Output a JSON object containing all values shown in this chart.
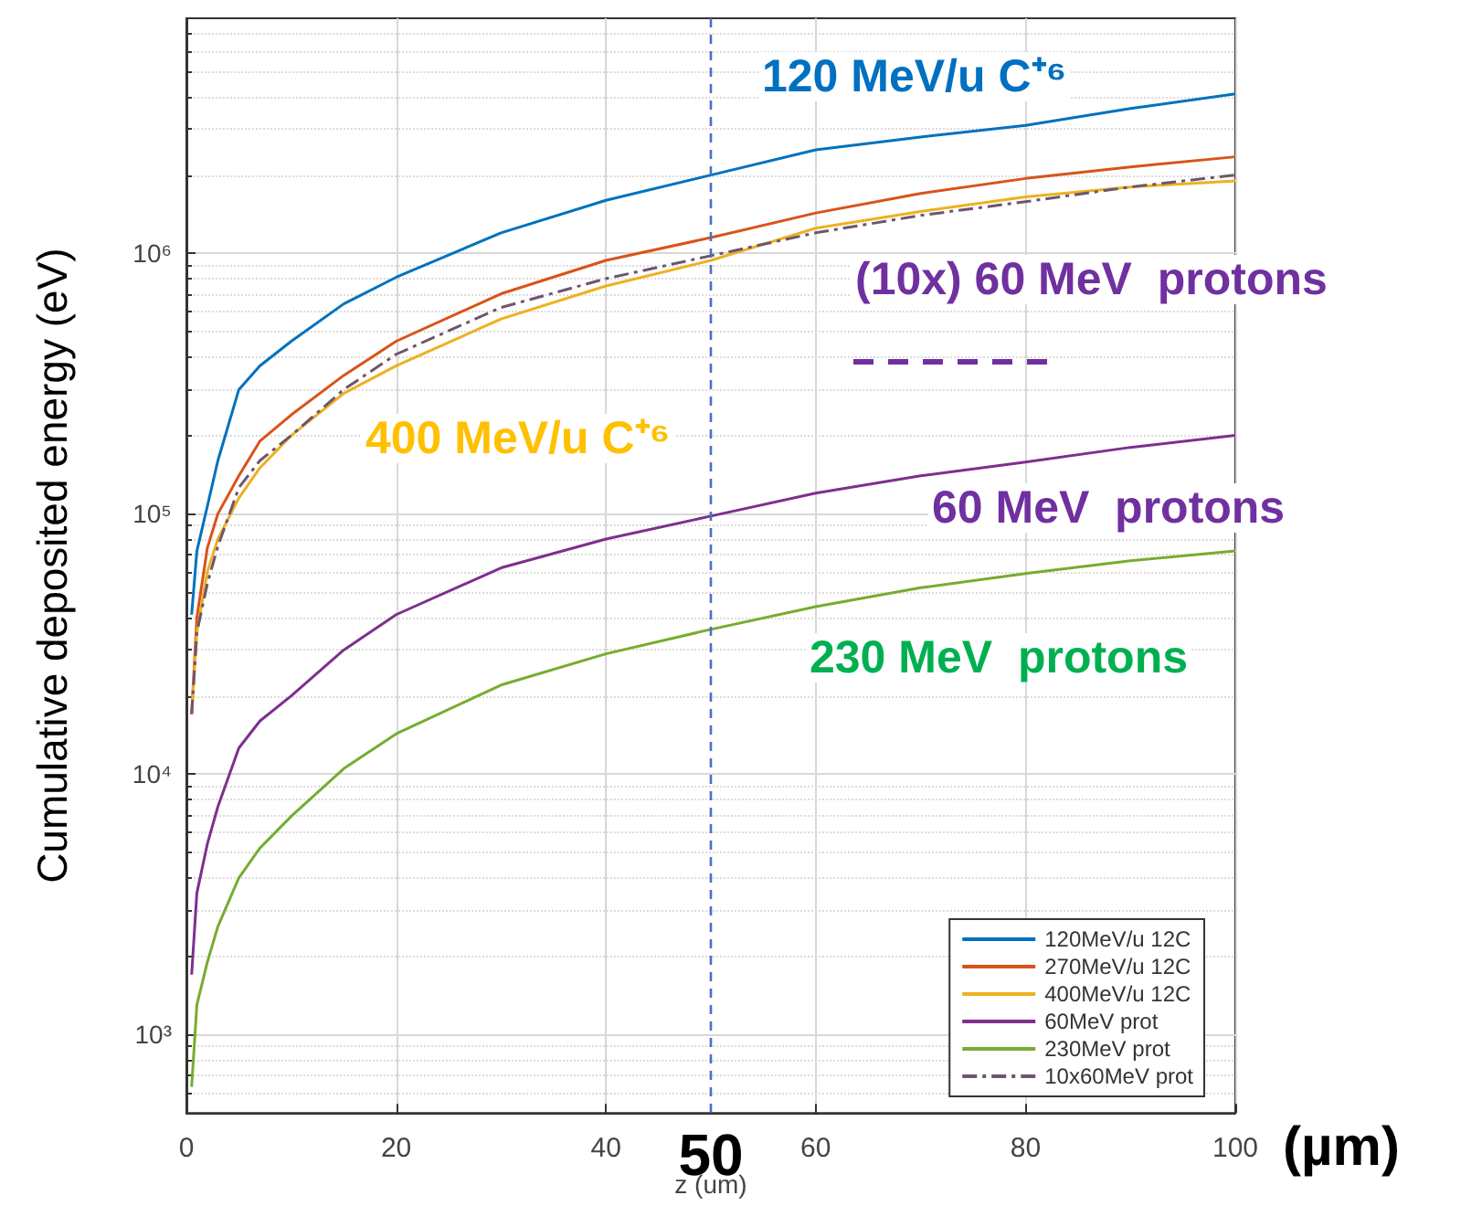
{
  "chart_data": {
    "type": "line",
    "xlabel": "z (um)",
    "ylabel": "Cumulative deposited energy (eV)",
    "x": [
      0.5,
      1,
      2,
      3,
      5,
      7,
      10,
      15,
      20,
      30,
      40,
      50,
      60,
      70,
      80,
      90,
      100
    ],
    "series": [
      {
        "name": "120MeV/u 12C",
        "color": "#0072bd",
        "values": [
          41000,
          72000,
          107000,
          160000,
          300000,
          370000,
          460000,
          640000,
          810000,
          1200000,
          1600000,
          2000000,
          2500000,
          2800000,
          3100000,
          3600000,
          4100000
        ]
      },
      {
        "name": "270MeV/u 12C",
        "color": "#d95319",
        "values": [
          17000,
          40000,
          74000,
          100000,
          140000,
          190000,
          240000,
          340000,
          460000,
          700000,
          940000,
          1150000,
          1430000,
          1700000,
          1940000,
          2150000,
          2350000
        ]
      },
      {
        "name": "400MeV/u 12C",
        "color": "#edb120",
        "values": [
          17000,
          35000,
          60000,
          80000,
          115000,
          150000,
          200000,
          290000,
          370000,
          560000,
          750000,
          940000,
          1250000,
          1450000,
          1650000,
          1800000,
          1900000
        ]
      },
      {
        "name": "60MeV prot",
        "color": "#7e2f8e",
        "values": [
          1700,
          3500,
          5400,
          7500,
          12600,
          16000,
          20000,
          30000,
          41000,
          62000,
          80000,
          98000,
          120000,
          140000,
          158000,
          180000,
          200000
        ]
      },
      {
        "name": "230MeV prot",
        "color": "#77ac30",
        "values": [
          630,
          1300,
          1900,
          2600,
          4000,
          5200,
          6900,
          10500,
          14300,
          22000,
          29000,
          36000,
          44000,
          52000,
          59000,
          66000,
          72000
        ]
      },
      {
        "name": "10x60MeV prot",
        "color": "#6e5570",
        "line_style": "dashed",
        "values": [
          17000,
          35000,
          54000,
          75000,
          126000,
          160000,
          200000,
          300000,
          410000,
          620000,
          800000,
          980000,
          1200000,
          1400000,
          1580000,
          1800000,
          2000000
        ]
      }
    ],
    "xlim": [
      0,
      100
    ],
    "xticks": [
      0,
      20,
      40,
      60,
      80,
      100
    ],
    "ylim": [
      500,
      8000000
    ],
    "yticks": [
      {
        "value": 1000,
        "label": "10³"
      },
      {
        "value": 10000,
        "label": "10⁴"
      },
      {
        "value": 100000,
        "label": "10⁵"
      },
      {
        "value": 1000000,
        "label": "10⁶"
      }
    ],
    "log": true,
    "grid": true,
    "legend": "bottom right",
    "ref_lines": [
      {
        "axis": "x",
        "value": 50,
        "label": "50",
        "color": "#4472c4",
        "line_style": "dashed"
      }
    ],
    "annotations": [
      "120 MeV/u C⁺⁶",
      "400 MeV/u C⁺⁶",
      "(10x) 60 MeV  protons",
      "60 MeV  protons",
      "230 MeV  protons",
      "(µm)"
    ]
  }
}
